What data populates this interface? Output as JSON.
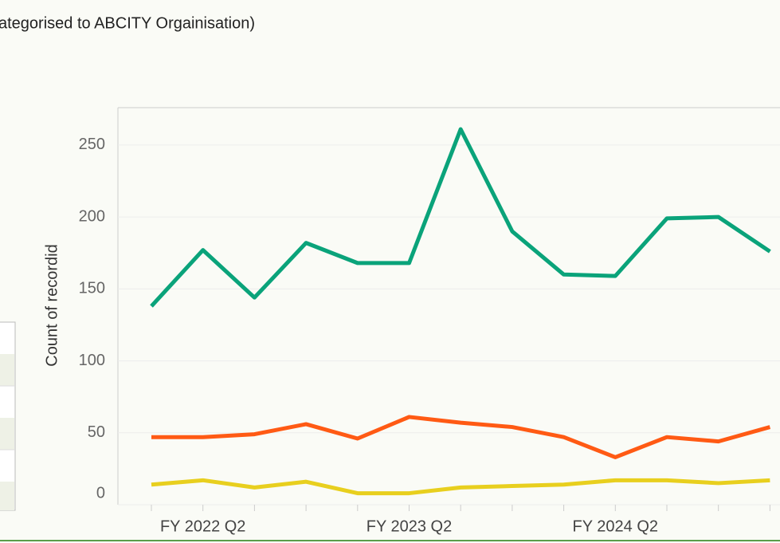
{
  "header": {
    "title": "ategorised to ABCITY Orgainisation)"
  },
  "chart_data": {
    "type": "line",
    "y_label": "Count of recordid",
    "categories": [
      null,
      "FY 2022 Q2",
      null,
      null,
      null,
      "FY 2023 Q2",
      null,
      null,
      null,
      "FY 2024 Q2",
      null,
      null,
      null
    ],
    "series": [
      {
        "color": "#0aa37a",
        "values": [
          138,
          177,
          144,
          182,
          168,
          168,
          261,
          190,
          160,
          159,
          199,
          200,
          176
        ]
      },
      {
        "color": "#ff5a14",
        "values": [
          47,
          47,
          49,
          56,
          46,
          61,
          57,
          54,
          47,
          33,
          47,
          44,
          54
        ]
      },
      {
        "color": "#e8cf1e",
        "values": [
          14,
          17,
          12,
          16,
          8,
          8,
          12,
          13,
          14,
          17,
          17,
          15,
          17
        ]
      }
    ],
    "ylim": [
      0,
      276
    ],
    "yticks": [
      0,
      50,
      100,
      150,
      200,
      250
    ],
    "grid": true
  }
}
